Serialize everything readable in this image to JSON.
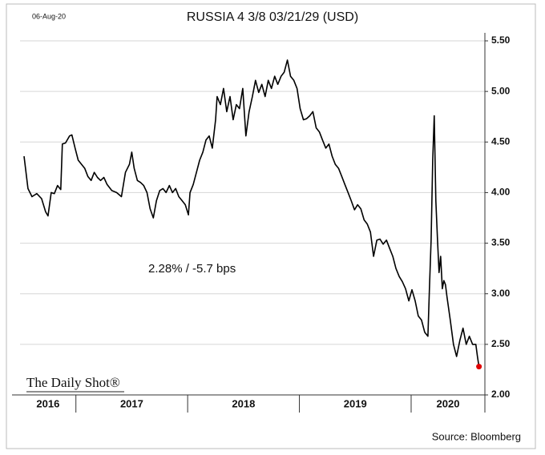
{
  "date_label": "06-Aug-20",
  "chart_data": {
    "type": "line",
    "title": "RUSSIA 4  3/8 03/21/29 (USD)",
    "annotation": "2.28%  /  -5.7 bps",
    "logo": "The Daily Shot®",
    "source": "Source: Bloomberg",
    "x": [
      2016.536,
      2016.571,
      2016.607,
      2016.65,
      2016.693,
      2016.729,
      2016.75,
      2016.779,
      2016.807,
      2016.836,
      2016.864,
      2016.879,
      2016.907,
      2016.943,
      2016.964,
      2016.993,
      2017.021,
      2017.05,
      2017.079,
      2017.107,
      2017.136,
      2017.164,
      2017.193,
      2017.221,
      2017.25,
      2017.279,
      2017.321,
      2017.364,
      2017.407,
      2017.443,
      2017.479,
      2017.5,
      2017.521,
      2017.55,
      2017.579,
      2017.607,
      2017.636,
      2017.664,
      2017.693,
      2017.721,
      2017.75,
      2017.779,
      2017.807,
      2017.836,
      2017.864,
      2017.893,
      2017.921,
      2017.95,
      2017.979,
      2018.007,
      2018.021,
      2018.05,
      2018.079,
      2018.107,
      2018.136,
      2018.164,
      2018.193,
      2018.221,
      2018.25,
      2018.264,
      2018.293,
      2018.321,
      2018.35,
      2018.379,
      2018.407,
      2018.436,
      2018.464,
      2018.493,
      2018.521,
      2018.55,
      2018.579,
      2018.607,
      2018.636,
      2018.664,
      2018.693,
      2018.721,
      2018.75,
      2018.779,
      2018.807,
      2018.836,
      2018.864,
      2018.893,
      2018.921,
      2018.95,
      2018.979,
      2019.007,
      2019.036,
      2019.064,
      2019.093,
      2019.121,
      2019.15,
      2019.179,
      2019.207,
      2019.236,
      2019.264,
      2019.293,
      2019.321,
      2019.35,
      2019.379,
      2019.407,
      2019.436,
      2019.464,
      2019.493,
      2019.521,
      2019.55,
      2019.579,
      2019.607,
      2019.636,
      2019.664,
      2019.693,
      2019.721,
      2019.75,
      2019.779,
      2019.807,
      2019.836,
      2019.864,
      2019.893,
      2019.921,
      2019.95,
      2019.979,
      2020.007,
      2020.036,
      2020.064,
      2020.093,
      2020.121,
      2020.15,
      2020.164,
      2020.179,
      2020.193,
      2020.207,
      2020.221,
      2020.236,
      2020.25,
      2020.264,
      2020.279,
      2020.293,
      2020.307,
      2020.321,
      2020.35,
      2020.379,
      2020.407,
      2020.436,
      2020.464,
      2020.493,
      2020.521,
      2020.55,
      2020.579,
      2020.593,
      2020.607
    ],
    "series": [
      {
        "name": "RUSSIA 4 3/8 03/21/29",
        "color": "#000000",
        "last_point_color": "#e00000",
        "values": [
          4.36,
          4.04,
          3.96,
          3.99,
          3.94,
          3.81,
          3.77,
          4.0,
          3.99,
          4.07,
          4.03,
          4.48,
          4.49,
          4.56,
          4.57,
          4.44,
          4.32,
          4.28,
          4.24,
          4.16,
          4.12,
          4.2,
          4.15,
          4.12,
          4.15,
          4.08,
          4.02,
          4.0,
          3.96,
          4.2,
          4.28,
          4.4,
          4.24,
          4.12,
          4.1,
          4.07,
          4.0,
          3.84,
          3.75,
          3.92,
          4.02,
          4.04,
          4.0,
          4.07,
          4.0,
          4.04,
          3.96,
          3.92,
          3.88,
          3.78,
          4.0,
          4.08,
          4.2,
          4.32,
          4.4,
          4.52,
          4.56,
          4.44,
          4.72,
          4.95,
          4.87,
          5.03,
          4.8,
          4.95,
          4.72,
          4.87,
          4.83,
          5.03,
          4.56,
          4.8,
          4.95,
          5.11,
          4.99,
          5.07,
          4.95,
          5.11,
          5.03,
          5.15,
          5.07,
          5.15,
          5.19,
          5.31,
          5.15,
          5.11,
          5.03,
          4.83,
          4.72,
          4.73,
          4.76,
          4.8,
          4.64,
          4.6,
          4.52,
          4.44,
          4.48,
          4.36,
          4.28,
          4.24,
          4.16,
          4.08,
          4.0,
          3.92,
          3.83,
          3.88,
          3.84,
          3.73,
          3.69,
          3.61,
          3.37,
          3.53,
          3.54,
          3.49,
          3.53,
          3.45,
          3.37,
          3.25,
          3.17,
          3.12,
          3.05,
          2.93,
          3.04,
          2.93,
          2.78,
          2.74,
          2.62,
          2.58,
          3.05,
          3.53,
          4.32,
          4.76,
          3.92,
          3.53,
          3.21,
          3.37,
          3.05,
          3.13,
          3.09,
          2.97,
          2.74,
          2.5,
          2.38,
          2.54,
          2.66,
          2.5,
          2.58,
          2.5,
          2.5,
          2.38,
          2.28
        ]
      }
    ],
    "xlim": [
      2016.5,
      2020.66
    ],
    "xticks": [
      2016,
      2017,
      2018,
      2019,
      2020
    ],
    "ylim": [
      2.0,
      5.5
    ],
    "yticks": [
      {
        "value": 2.0,
        "label": "2.00"
      },
      {
        "value": 2.5,
        "label": "2.50"
      },
      {
        "value": 3.0,
        "label": "3.00"
      },
      {
        "value": 3.5,
        "label": "3.50"
      },
      {
        "value": 4.0,
        "label": "4.00"
      },
      {
        "value": 4.5,
        "label": "4.50"
      },
      {
        "value": 5.0,
        "label": "5.00"
      },
      {
        "value": 5.5,
        "label": "5.50"
      }
    ],
    "grid": true
  }
}
